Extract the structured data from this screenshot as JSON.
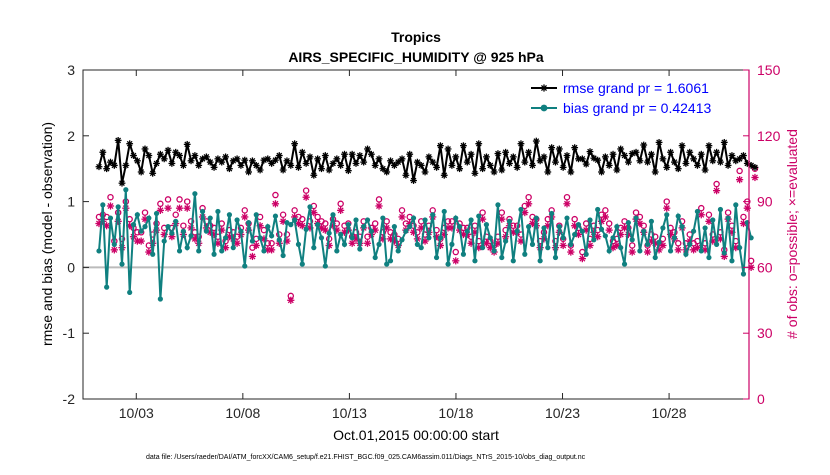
{
  "chart_data": {
    "type": "line",
    "title": "Tropics",
    "subtitle": "AIRS_SPECIFIC_HUMIDITY @ 925 hPa",
    "xlabel": "Oct.01,2015 00:00:00 start",
    "ylabel": "rmse and bias (model - observation)",
    "ylabel_right": "# of obs: o=possible; ×=evaluated",
    "footnote": "data file: /Users/raeder/DAI/ATM_forcXX/CAM6_setup/f.e21.FHIST_BGC.f09_025.CAM6assim.011/Diags_NTrS_2015-10/obs_diag_output.nc",
    "xlim": [
      0.5,
      31.75
    ],
    "ylim": [
      -2,
      3
    ],
    "ylim_right": [
      0,
      150
    ],
    "x_ticks": [
      3,
      8,
      13,
      18,
      23,
      28
    ],
    "x_tick_labels": [
      "10/03",
      "10/08",
      "10/13",
      "10/18",
      "10/23",
      "10/28"
    ],
    "y_ticks": [
      -2,
      -1,
      0,
      1,
      2,
      3
    ],
    "y_tick_labels": [
      "-2",
      "-1",
      "0",
      "1",
      "2",
      "3"
    ],
    "y_ticks_right": [
      0,
      30,
      60,
      90,
      120,
      150
    ],
    "y_tick_labels_right": [
      "0",
      "30",
      "60",
      "90",
      "120",
      "150"
    ],
    "legend_position": "top-right",
    "series": [
      {
        "name": "rmse grand pr = 1.6061",
        "color": "#000000",
        "marker": "star",
        "values": [
          1.53,
          1.75,
          1.5,
          1.6,
          1.55,
          1.93,
          1.28,
          1.55,
          1.88,
          1.7,
          1.62,
          1.45,
          1.8,
          1.7,
          1.43,
          1.58,
          1.72,
          1.65,
          1.78,
          1.58,
          1.75,
          1.7,
          1.55,
          1.87,
          1.62,
          1.7,
          1.55,
          1.65,
          1.68,
          1.6,
          1.52,
          1.65,
          1.6,
          1.68,
          1.5,
          1.62,
          1.65,
          1.55,
          1.63,
          1.45,
          1.62,
          1.55,
          1.48,
          1.63,
          1.65,
          1.58,
          1.63,
          1.7,
          1.48,
          1.62,
          1.55,
          1.88,
          1.52,
          1.75,
          1.58,
          1.68,
          1.4,
          1.65,
          1.5,
          1.7,
          1.48,
          1.58,
          1.65,
          1.55,
          1.72,
          1.47,
          1.72,
          1.58,
          1.7,
          1.6,
          1.8,
          1.72,
          1.55,
          1.65,
          1.5,
          1.45,
          1.62,
          1.55,
          1.6,
          1.65,
          1.4,
          1.72,
          1.32,
          1.6,
          1.55,
          1.45,
          1.68,
          1.6,
          1.52,
          1.85,
          1.4,
          1.8,
          1.55,
          1.68,
          1.5,
          1.85,
          1.6,
          1.72,
          1.43,
          1.88,
          1.5,
          1.68,
          1.55,
          1.45,
          1.73,
          1.48,
          1.75,
          1.58,
          1.68,
          1.52,
          1.88,
          1.6,
          1.75,
          1.55,
          1.92,
          1.62,
          1.68,
          1.45,
          1.82,
          1.6,
          1.8,
          1.52,
          1.7,
          1.45,
          1.82,
          1.65,
          1.65,
          1.57,
          1.76,
          1.66,
          1.63,
          1.45,
          1.68,
          1.55,
          1.72,
          1.48,
          1.8,
          1.7,
          1.6,
          1.73,
          1.75,
          1.62,
          1.86,
          1.6,
          1.72,
          1.45,
          1.9,
          1.65,
          1.52,
          1.75,
          1.6,
          1.5,
          1.85,
          1.58,
          1.75,
          1.65,
          1.55,
          1.72,
          1.48,
          1.85,
          1.62,
          1.75,
          1.6,
          1.9,
          1.55,
          1.7,
          1.62,
          1.65,
          1.7,
          1.58,
          1.55,
          1.52
        ]
      },
      {
        "name": "bias grand pr = 0.42413",
        "color": "#108080",
        "marker": "circle",
        "values": [
          0.25,
          0.95,
          -0.3,
          0.75,
          0.35,
          0.92,
          0.05,
          1.18,
          -0.38,
          0.65,
          0.8,
          0.55,
          0.62,
          0.75,
          0.2,
          0.82,
          -0.48,
          0.4,
          0.62,
          0.52,
          0.7,
          0.25,
          0.55,
          0.3,
          0.48,
          1.12,
          0.25,
          0.85,
          0.55,
          0.75,
          0.2,
          0.85,
          0.25,
          0.45,
          0.8,
          0.3,
          0.72,
          0.55,
          0.02,
          0.68,
          0.4,
          0.8,
          0.45,
          0.25,
          0.62,
          0.48,
          0.78,
          0.42,
          0.18,
          0.68,
          0.65,
          0.72,
          0.35,
          0.05,
          0.58,
          0.92,
          0.3,
          0.65,
          0.45,
          0.02,
          0.52,
          0.8,
          0.25,
          0.5,
          0.35,
          0.65,
          0.45,
          0.72,
          0.28,
          0.62,
          0.72,
          0.55,
          0.15,
          0.35,
          0.75,
          0.05,
          0.1,
          0.62,
          0.25,
          0.42,
          0.55,
          0.62,
          0.75,
          0.35,
          0.3,
          0.72,
          0.45,
          0.8,
          0.15,
          0.45,
          0.85,
          0.05,
          0.35,
          0.75,
          0.62,
          0.2,
          0.55,
          0.72,
          0.1,
          0.78,
          0.3,
          0.65,
          0.45,
          0.25,
          0.95,
          0.15,
          0.4,
          0.7,
          0.1,
          0.55,
          0.88,
          0.2,
          0.62,
          0.35,
          0.75,
          0.1,
          0.6,
          0.3,
          0.82,
          0.15,
          0.62,
          0.45,
          0.75,
          0.35,
          0.5,
          0.65,
          0.55,
          0.2,
          0.72,
          0.42,
          0.88,
          0.58,
          0.48,
          0.25,
          0.45,
          0.62,
          0.3,
          0.05,
          0.68,
          0.42,
          0.75,
          0.25,
          0.55,
          0.35,
          0.7,
          0.15,
          0.38,
          0.6,
          0.8,
          0.25,
          0.45,
          0.78,
          0.62,
          0.2,
          0.35,
          0.55,
          0.85,
          0.25,
          0.6,
          0.15,
          0.72,
          0.35,
          0.88,
          0.22,
          0.75,
          0.1,
          0.95,
          0.3,
          -0.1,
          0.68,
          0.45
        ]
      },
      {
        "name": "# obs possible",
        "axis": "right",
        "color": "#cc0066",
        "marker": "o",
        "values": [
          83,
          84,
          83,
          92,
          72,
          85,
          73,
          90,
          82,
          78,
          76,
          76,
          85,
          70,
          75,
          80,
          89,
          78,
          91,
          78,
          84,
          91,
          79,
          90,
          81,
          76,
          74,
          87,
          81,
          79,
          78,
          74,
          80,
          72,
          77,
          76,
          74,
          78,
          86,
          80,
          69,
          73,
          83,
          77,
          71,
          71,
          93,
          75,
          84,
          75,
          47,
          86,
          83,
          82,
          95,
          81,
          88,
          83,
          81,
          80,
          73,
          82,
          80,
          89,
          79,
          80,
          74,
          76,
          74,
          81,
          74,
          78,
          80,
          91,
          76,
          81,
          76,
          75,
          73,
          86,
          80,
          83,
          79,
          76,
          81,
          75,
          79,
          86,
          77,
          73,
          78,
          81,
          81,
          67,
          80,
          78,
          78,
          74,
          79,
          72,
          85,
          74,
          72,
          70,
          74,
          85,
          77,
          82,
          79,
          79,
          75,
          88,
          92,
          83,
          82,
          72,
          76,
          82,
          86,
          72,
          79,
          73,
          92,
          70,
          82,
          78,
          67,
          80,
          73,
          79,
          77,
          84,
          86,
          80,
          72,
          73,
          78,
          81,
          78,
          70,
          85,
          83,
          79,
          70,
          75,
          74,
          71,
          73,
          90,
          78,
          76,
          71,
          81,
          71,
          75,
          71,
          72,
          87,
          71,
          84,
          75,
          98,
          76,
          68,
          85,
          79,
          72,
          104,
          83,
          90,
          63,
          105
        ]
      },
      {
        "name": "# obs evaluated",
        "axis": "right",
        "color": "#cc0066",
        "marker": "*",
        "values": [
          80,
          81,
          79,
          88,
          68,
          81,
          69,
          87,
          79,
          74,
          72,
          72,
          82,
          67,
          71,
          77,
          86,
          75,
          87,
          74,
          80,
          87,
          75,
          87,
          78,
          73,
          71,
          83,
          78,
          76,
          75,
          71,
          77,
          69,
          74,
          73,
          71,
          75,
          83,
          77,
          65,
          70,
          79,
          73,
          68,
          68,
          89,
          71,
          81,
          72,
          45,
          83,
          80,
          79,
          92,
          78,
          85,
          80,
          78,
          77,
          70,
          79,
          77,
          86,
          76,
          77,
          71,
          73,
          71,
          78,
          71,
          75,
          77,
          88,
          73,
          78,
          73,
          72,
          70,
          83,
          77,
          80,
          76,
          73,
          78,
          72,
          76,
          83,
          74,
          70,
          75,
          78,
          78,
          63,
          77,
          75,
          75,
          71,
          76,
          69,
          82,
          71,
          69,
          67,
          71,
          82,
          74,
          79,
          76,
          76,
          72,
          85,
          89,
          80,
          79,
          69,
          73,
          79,
          83,
          69,
          76,
          70,
          89,
          67,
          79,
          75,
          64,
          77,
          70,
          76,
          74,
          81,
          83,
          77,
          69,
          70,
          75,
          78,
          75,
          67,
          82,
          80,
          76,
          67,
          72,
          71,
          68,
          70,
          87,
          75,
          73,
          68,
          78,
          68,
          72,
          68,
          69,
          84,
          68,
          81,
          72,
          95,
          73,
          65,
          82,
          76,
          69,
          100,
          80,
          87,
          60,
          101
        ]
      }
    ]
  }
}
